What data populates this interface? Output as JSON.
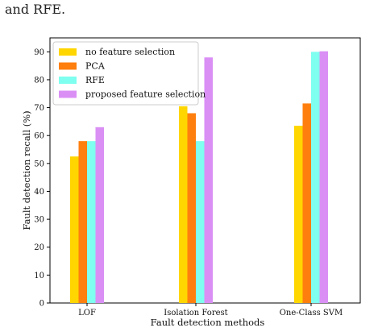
{
  "header_snippet": "and RFE.",
  "chart_data": {
    "type": "bar",
    "title": "",
    "xlabel": "Fault detection methods",
    "ylabel": "Fault detection recall (%)",
    "categories": [
      "LOF",
      "Isolation Forest",
      "One-Class SVM"
    ],
    "ylim": [
      0,
      95
    ],
    "yticks": [
      0,
      10,
      20,
      30,
      40,
      50,
      60,
      70,
      80,
      90
    ],
    "grid": false,
    "legend_position": "top-left",
    "series": [
      {
        "name": "no feature selection",
        "color": "#FFD600",
        "values": [
          52.5,
          70.5,
          63.5
        ]
      },
      {
        "name": "PCA",
        "color": "#FF7F0E",
        "values": [
          58,
          68,
          71.5
        ]
      },
      {
        "name": "RFE",
        "color": "#7FFFEF",
        "values": [
          58,
          58,
          90
        ]
      },
      {
        "name": "proposed feature selection",
        "color": "#DA8FF5",
        "values": [
          63,
          88,
          90.2
        ]
      }
    ]
  }
}
